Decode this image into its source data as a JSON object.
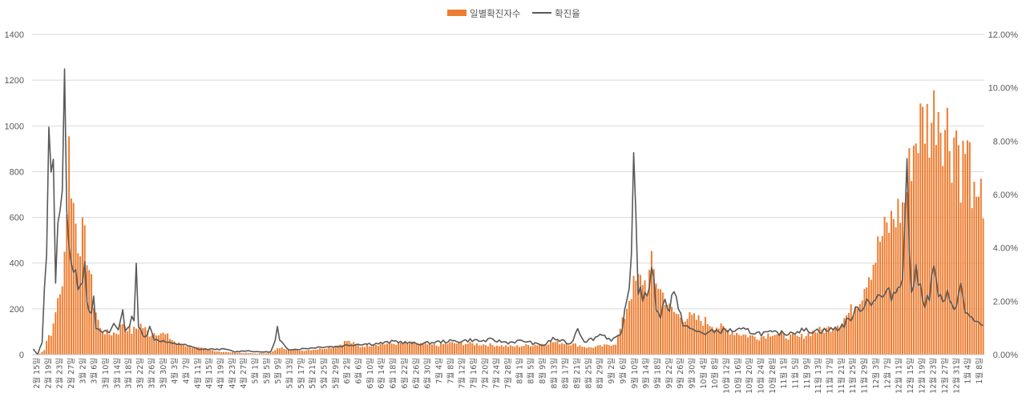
{
  "chart_data": {
    "type": "bar",
    "series": [
      {
        "name": "일별확진자수",
        "color": "#ED7D31",
        "axis": "left"
      },
      {
        "name": "확진율",
        "color": "#595959",
        "axis": "right"
      }
    ],
    "legend_position": "top-center",
    "grid": true,
    "y_left": {
      "min": 0,
      "max": 1400,
      "ticks": [
        "0",
        "200",
        "400",
        "600",
        "800",
        "1000",
        "1200",
        "1400"
      ]
    },
    "y_right": {
      "min": 0,
      "max": 12,
      "ticks": [
        "0.00%",
        "2.00%",
        "4.00%",
        "6.00%",
        "8.00%",
        "10.00%",
        "12.00%"
      ]
    },
    "x_tick_labels": [
      "2월 15일",
      "2월 19일",
      "2월 23일",
      "2월 27일",
      "3월 2일",
      "3월 6일",
      "3월 10일",
      "3월 14일",
      "3월 18일",
      "3월 22일",
      "3월 26일",
      "3월 30일",
      "4월 3일",
      "4월 7일",
      "4월 11일",
      "4월 15일",
      "4월 19일",
      "4월 23일",
      "4월 27일",
      "5월 1일",
      "5월 5일",
      "5월 9일",
      "5월 13일",
      "5월 17일",
      "5월 21일",
      "5월 25일",
      "5월 29일",
      "6월 2일",
      "6월 6일",
      "6월 10일",
      "6월 14일",
      "6월 18일",
      "6월 22일",
      "6월 26일",
      "6월 30일",
      "7월 4일",
      "7월 8일",
      "7월 12일",
      "7월 16일",
      "7월 20일",
      "7월 24일",
      "7월 28일",
      "8월 1일",
      "8월 5일",
      "8월 9일",
      "8월 13일",
      "8월 17일",
      "8월 21일",
      "8월 25일",
      "8월 29일",
      "9월 2일",
      "9월 6일",
      "9월 10일",
      "9월 14일",
      "9월 18일",
      "9월 22일",
      "9월 26일",
      "9월 30일",
      "10월 4일",
      "10월 8일",
      "10월 12일",
      "10월 16일",
      "10월 20일",
      "10월 24일",
      "10월 28일",
      "11월 1일",
      "11월 5일",
      "11월 9일",
      "11월 13일",
      "11월 17일",
      "11월 21일",
      "11월 25일",
      "11월 29일",
      "12월 3일",
      "12월 7일",
      "12월 11일",
      "12월 15일",
      "12월 19일",
      "12월 23일",
      "12월 27일",
      "12월 31일",
      "1월 4일",
      "1월 8일"
    ],
    "daily_cases_anchors": [
      [
        0,
        0
      ],
      [
        3,
        5
      ],
      [
        5,
        20
      ],
      [
        6,
        70
      ],
      [
        8,
        80
      ],
      [
        10,
        200
      ],
      [
        12,
        250
      ],
      [
        14,
        450
      ],
      [
        16,
        900
      ],
      [
        18,
        650
      ],
      [
        20,
        500
      ],
      [
        22,
        520
      ],
      [
        24,
        450
      ],
      [
        27,
        230
      ],
      [
        30,
        110
      ],
      [
        34,
        90
      ],
      [
        38,
        100
      ],
      [
        40,
        140
      ],
      [
        44,
        100
      ],
      [
        48,
        130
      ],
      [
        52,
        90
      ],
      [
        56,
        100
      ],
      [
        60,
        80
      ],
      [
        64,
        50
      ],
      [
        70,
        35
      ],
      [
        76,
        25
      ],
      [
        84,
        12
      ],
      [
        92,
        8
      ],
      [
        100,
        5
      ],
      [
        106,
        8
      ],
      [
        110,
        30
      ],
      [
        114,
        25
      ],
      [
        120,
        18
      ],
      [
        128,
        25
      ],
      [
        136,
        40
      ],
      [
        140,
        60
      ],
      [
        146,
        35
      ],
      [
        152,
        45
      ],
      [
        160,
        48
      ],
      [
        166,
        50
      ],
      [
        172,
        48
      ],
      [
        180,
        40
      ],
      [
        186,
        50
      ],
      [
        194,
        48
      ],
      [
        200,
        45
      ],
      [
        208,
        40
      ],
      [
        214,
        35
      ],
      [
        220,
        40
      ],
      [
        226,
        45
      ],
      [
        232,
        55
      ],
      [
        238,
        50
      ],
      [
        244,
        40
      ],
      [
        248,
        30
      ],
      [
        252,
        35
      ],
      [
        256,
        40
      ],
      [
        260,
        50
      ],
      [
        262,
        110
      ],
      [
        264,
        170
      ],
      [
        266,
        250
      ],
      [
        268,
        300
      ],
      [
        270,
        320
      ],
      [
        272,
        330
      ],
      [
        274,
        300
      ],
      [
        276,
        390
      ],
      [
        278,
        330
      ],
      [
        280,
        280
      ],
      [
        282,
        250
      ],
      [
        284,
        200
      ],
      [
        288,
        170
      ],
      [
        294,
        160
      ],
      [
        300,
        145
      ],
      [
        306,
        120
      ],
      [
        312,
        100
      ],
      [
        318,
        85
      ],
      [
        324,
        75
      ],
      [
        330,
        95
      ],
      [
        336,
        80
      ],
      [
        342,
        75
      ],
      [
        348,
        100
      ],
      [
        354,
        110
      ],
      [
        360,
        140
      ],
      [
        366,
        200
      ],
      [
        370,
        270
      ],
      [
        372,
        340
      ],
      [
        374,
        380
      ],
      [
        376,
        430
      ],
      [
        378,
        500
      ],
      [
        380,
        530
      ],
      [
        382,
        560
      ],
      [
        384,
        600
      ],
      [
        386,
        620
      ],
      [
        388,
        640
      ],
      [
        390,
        720
      ],
      [
        392,
        880
      ],
      [
        394,
        950
      ],
      [
        396,
        1000
      ],
      [
        398,
        1030
      ],
      [
        400,
        1000
      ],
      [
        402,
        1060
      ],
      [
        404,
        1100
      ],
      [
        406,
        1000
      ],
      [
        408,
        1000
      ],
      [
        410,
        900
      ],
      [
        412,
        1000
      ],
      [
        414,
        800
      ],
      [
        416,
        900
      ],
      [
        418,
        850
      ],
      [
        420,
        650
      ],
      [
        422,
        600
      ],
      [
        423,
        850
      ],
      [
        424,
        640
      ]
    ],
    "positivity_rate_anchors": [
      [
        0,
        0.2
      ],
      [
        2,
        0
      ],
      [
        4,
        0.5
      ],
      [
        6,
        4
      ],
      [
        7,
        9.6
      ],
      [
        8,
        7
      ],
      [
        9,
        7.7
      ],
      [
        10,
        2.5
      ],
      [
        11,
        4.5
      ],
      [
        12,
        6
      ],
      [
        13,
        5.8
      ],
      [
        14,
        10.2
      ],
      [
        15,
        6
      ],
      [
        16,
        4.2
      ],
      [
        18,
        3
      ],
      [
        20,
        2.7
      ],
      [
        22,
        3
      ],
      [
        23,
        3.5
      ],
      [
        24,
        2.2
      ],
      [
        26,
        1.4
      ],
      [
        27,
        2
      ],
      [
        28,
        1
      ],
      [
        30,
        0.8
      ],
      [
        32,
        0.9
      ],
      [
        34,
        0.8
      ],
      [
        36,
        1.2
      ],
      [
        38,
        1
      ],
      [
        40,
        1.5
      ],
      [
        41,
        1
      ],
      [
        42,
        0.9
      ],
      [
        43,
        1.2
      ],
      [
        44,
        1.5
      ],
      [
        45,
        1.3
      ],
      [
        46,
        3.1
      ],
      [
        47,
        1
      ],
      [
        48,
        0.9
      ],
      [
        50,
        0.7
      ],
      [
        52,
        1
      ],
      [
        54,
        0.6
      ],
      [
        58,
        0.5
      ],
      [
        62,
        0.4
      ],
      [
        66,
        0.4
      ],
      [
        70,
        0.3
      ],
      [
        74,
        0.2
      ],
      [
        80,
        0.2
      ],
      [
        86,
        0.2
      ],
      [
        90,
        0.1
      ],
      [
        95,
        0.15
      ],
      [
        100,
        0.1
      ],
      [
        106,
        0.1
      ],
      [
        108,
        0.5
      ],
      [
        109,
        1
      ],
      [
        110,
        0.5
      ],
      [
        114,
        0.2
      ],
      [
        118,
        0.2
      ],
      [
        124,
        0.25
      ],
      [
        130,
        0.3
      ],
      [
        136,
        0.3
      ],
      [
        140,
        0.35
      ],
      [
        146,
        0.4
      ],
      [
        152,
        0.4
      ],
      [
        158,
        0.45
      ],
      [
        162,
        0.5
      ],
      [
        166,
        0.45
      ],
      [
        172,
        0.4
      ],
      [
        178,
        0.45
      ],
      [
        184,
        0.5
      ],
      [
        190,
        0.5
      ],
      [
        196,
        0.55
      ],
      [
        200,
        0.5
      ],
      [
        204,
        0.55
      ],
      [
        208,
        0.5
      ],
      [
        212,
        0.45
      ],
      [
        216,
        0.5
      ],
      [
        220,
        0.5
      ],
      [
        224,
        0.4
      ],
      [
        228,
        0.35
      ],
      [
        232,
        0.6
      ],
      [
        236,
        0.5
      ],
      [
        240,
        0.4
      ],
      [
        243,
        1
      ],
      [
        246,
        0.5
      ],
      [
        250,
        0.6
      ],
      [
        254,
        0.8
      ],
      [
        258,
        0.5
      ],
      [
        262,
        0.7
      ],
      [
        264,
        1.5
      ],
      [
        266,
        2.5
      ],
      [
        267,
        4
      ],
      [
        268,
        8.2
      ],
      [
        269,
        5
      ],
      [
        270,
        2.5
      ],
      [
        272,
        2.2
      ],
      [
        274,
        2
      ],
      [
        276,
        3.5
      ],
      [
        278,
        1.8
      ],
      [
        280,
        1.5
      ],
      [
        282,
        2
      ],
      [
        284,
        1.8
      ],
      [
        286,
        2.5
      ],
      [
        288,
        1.6
      ],
      [
        290,
        1.2
      ],
      [
        294,
        0.9
      ],
      [
        300,
        0.8
      ],
      [
        306,
        0.9
      ],
      [
        312,
        0.9
      ],
      [
        318,
        0.9
      ],
      [
        324,
        0.8
      ],
      [
        330,
        0.8
      ],
      [
        336,
        0.8
      ],
      [
        342,
        0.9
      ],
      [
        348,
        0.9
      ],
      [
        354,
        0.9
      ],
      [
        360,
        1
      ],
      [
        364,
        1.3
      ],
      [
        368,
        1.7
      ],
      [
        372,
        2
      ],
      [
        376,
        2.1
      ],
      [
        380,
        2.2
      ],
      [
        384,
        2.3
      ],
      [
        386,
        2.5
      ],
      [
        388,
        3.2
      ],
      [
        390,
        6.8
      ],
      [
        391,
        4
      ],
      [
        392,
        2.5
      ],
      [
        394,
        3
      ],
      [
        396,
        2.5
      ],
      [
        398,
        2
      ],
      [
        400,
        2.2
      ],
      [
        402,
        3.2
      ],
      [
        404,
        2.3
      ],
      [
        406,
        1.8
      ],
      [
        408,
        2.2
      ],
      [
        410,
        2
      ],
      [
        412,
        1.8
      ],
      [
        414,
        2.5
      ],
      [
        416,
        1.6
      ],
      [
        418,
        1.5
      ],
      [
        420,
        1.2
      ],
      [
        422,
        1.1
      ],
      [
        424,
        1.05
      ]
    ]
  }
}
